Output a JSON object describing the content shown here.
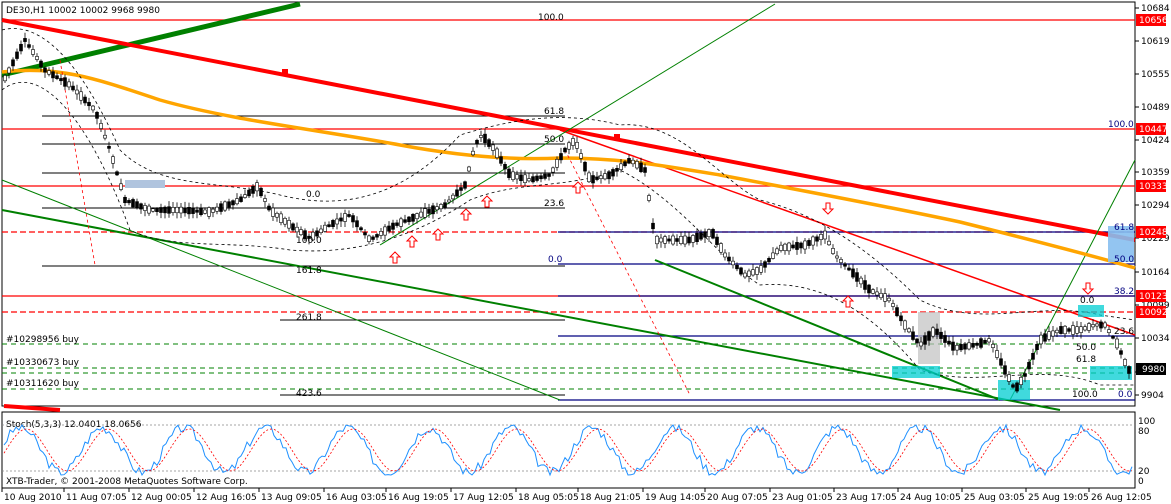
{
  "header": {
    "symbol_line": "DE30,H1  10002 10002 9968 9980"
  },
  "osc": {
    "label": "Stoch(5,3,3) 12.0401 18.0656",
    "levels": [
      "100",
      "80",
      "20",
      "0"
    ]
  },
  "copyright": "XTB-Trader, © 2001-2008 MetaQuotes Software Corp.",
  "price_axis": {
    "ticks": [
      "10684",
      "10619",
      "10555",
      "10489",
      "10424",
      "10359",
      "10294",
      "10229",
      "10164",
      "10099",
      "10034",
      "9969",
      "9904"
    ]
  },
  "time_axis": {
    "ticks": [
      "10 Aug 2010",
      "11 Aug 07:05",
      "12 Aug 00:05",
      "12 Aug 16:05",
      "13 Aug 09:05",
      "16 Aug 03:05",
      "16 Aug 19:05",
      "17 Aug 12:05",
      "18 Aug 05:05",
      "18 Aug 21:05",
      "19 Aug 14:05",
      "20 Aug 07:05",
      "23 Aug 01:05",
      "23 Aug 17:05",
      "24 Aug 10:05",
      "25 Aug 03:05",
      "25 Aug 19:05",
      "26 Aug 12:05"
    ]
  },
  "price_badges": [
    "10656",
    "10447",
    "10333",
    "10248",
    "10123",
    "10092"
  ],
  "current_price": "9980",
  "fibo_labels": [
    "100.0",
    "61.8",
    "50.0",
    "0.0",
    "23.6",
    "100.0",
    "161.8",
    "261.8",
    "423.6",
    "100.0",
    "61.8",
    "50.0",
    "0.0",
    "38.2",
    "0.0",
    "23.6",
    "50.0",
    "61.8",
    "100.0",
    "0.0"
  ],
  "orders": [
    "#10298956 buy",
    "#10330673 buy",
    "#10311620 buy"
  ],
  "colors": {
    "resistance": "#ff0000",
    "ma_orange": "#ffa500",
    "trend_green": "#008000",
    "fibo_navy": "#000080",
    "cyan_zone": "#00ced1",
    "stoch_main": "#1e90ff",
    "stoch_signal": "#ff0000",
    "badge_current": "#000000"
  }
}
